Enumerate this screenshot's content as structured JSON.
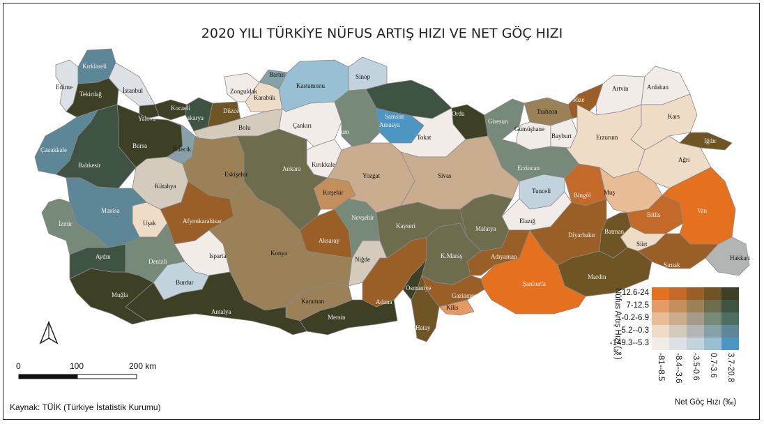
{
  "title": "2020 YILI TÜRKİYE NÜFUS ARTIŞ HIZI VE NET GÖÇ HIZI",
  "source": "Kaynak: TÜİK (Türkiye İstatistik Kurumu)",
  "scale_bar": {
    "tick_0": "0",
    "tick_1": "100",
    "tick_2": "200 km"
  },
  "north_arrow": "north-arrow-icon",
  "legend": {
    "y_title": "Nüfus Artış Hızı (‰)",
    "x_title": "Net Göç Hızı (‰)",
    "y_classes": [
      "12.6-24",
      "7-12.5",
      "-0.2-6.9",
      "-5.2--0.3",
      "-149.3--5.3"
    ],
    "x_classes": [
      "-81--8.5",
      "-8.4--3.6",
      "-3.5-0.6",
      "0.7-3.6",
      "3.7-20.8"
    ],
    "colors": [
      [
        "#e5711f",
        "#c36a2a",
        "#9a5f27",
        "#6f5524",
        "#3d4024"
      ],
      [
        "#e39a64",
        "#c38f5c",
        "#9b8157",
        "#6d6d4e",
        "#3f5342"
      ],
      [
        "#e8bc95",
        "#c9ad8e",
        "#a49c88",
        "#778978",
        "#4d6f63"
      ],
      [
        "#eedcc6",
        "#d4cbbd",
        "#b2b5b4",
        "#87a1a8",
        "#5d8796"
      ],
      [
        "#f2ece9",
        "#dde0e5",
        "#c2d3de",
        "#99bfd2",
        "#4d95c3"
      ]
    ]
  },
  "provinces": [
    {
      "name": "Edirne",
      "color": "#dde0e5"
    },
    {
      "name": "Kırklareli",
      "color": "#5d8796"
    },
    {
      "name": "Tekirdağ",
      "color": "#3d4024"
    },
    {
      "name": "İstanbul",
      "color": "#dde0e5"
    },
    {
      "name": "Kocaeli",
      "color": "#3d4024"
    },
    {
      "name": "Yalova",
      "color": "#3d4024"
    },
    {
      "name": "Sakarya",
      "color": "#3f5342"
    },
    {
      "name": "Düzce",
      "color": "#6f5524"
    },
    {
      "name": "Zonguldak",
      "color": "#f2ece9"
    },
    {
      "name": "Bartın",
      "color": "#87a1a8"
    },
    {
      "name": "Karabük",
      "color": "#eedcc6"
    },
    {
      "name": "Kastamonu",
      "color": "#99bfd2"
    },
    {
      "name": "Sinop",
      "color": "#c2d3de"
    },
    {
      "name": "Samsun",
      "color": "#3f5342"
    },
    {
      "name": "Ordu",
      "color": "#3d4024"
    },
    {
      "name": "Giresun",
      "color": "#778978"
    },
    {
      "name": "Trabzon",
      "color": "#9b8157"
    },
    {
      "name": "Rize",
      "color": "#9a5f27"
    },
    {
      "name": "Artvin",
      "color": "#f2ece9"
    },
    {
      "name": "Ardahan",
      "color": "#f2ece9"
    },
    {
      "name": "Gümüşhane",
      "color": "#f2ece9"
    },
    {
      "name": "Bayburt",
      "color": "#f2ece9"
    },
    {
      "name": "Erzurum",
      "color": "#eedcc6"
    },
    {
      "name": "Kars",
      "color": "#eedcc6"
    },
    {
      "name": "Iğdır",
      "color": "#6f5524"
    },
    {
      "name": "Ağrı",
      "color": "#eedcc6"
    },
    {
      "name": "Çanakkale",
      "color": "#5d8796"
    },
    {
      "name": "Balıkesir",
      "color": "#3f5342"
    },
    {
      "name": "Bursa",
      "color": "#3d4024"
    },
    {
      "name": "Bilecik",
      "color": "#87a1a8"
    },
    {
      "name": "Bolu",
      "color": "#d4cbbd"
    },
    {
      "name": "Çankırı",
      "color": "#f2ece9"
    },
    {
      "name": "Çorum",
      "color": "#778978"
    },
    {
      "name": "Amasya",
      "color": "#4d95c3"
    },
    {
      "name": "Tokat",
      "color": "#f2ece9"
    },
    {
      "name": "Erzincan",
      "color": "#778978"
    },
    {
      "name": "Tunceli",
      "color": "#c2d3de"
    },
    {
      "name": "Bingöl",
      "color": "#c36a2a"
    },
    {
      "name": "Muş",
      "color": "#e8bc95"
    },
    {
      "name": "Bitlis",
      "color": "#c36a2a"
    },
    {
      "name": "Van",
      "color": "#e5711f"
    },
    {
      "name": "Hakkari",
      "color": "#b2b5b4"
    },
    {
      "name": "Şırnak",
      "color": "#9a5f27"
    },
    {
      "name": "Siirt",
      "color": "#eedcc6"
    },
    {
      "name": "Batman",
      "color": "#6f5524"
    },
    {
      "name": "Mardin",
      "color": "#6f5524"
    },
    {
      "name": "Diyarbakır",
      "color": "#9a5f27"
    },
    {
      "name": "Şanlıurfa",
      "color": "#e5711f"
    },
    {
      "name": "Elazığ",
      "color": "#f2ece9"
    },
    {
      "name": "Malatya",
      "color": "#6d6d4e"
    },
    {
      "name": "Adıyaman",
      "color": "#9a5f27"
    },
    {
      "name": "K.Maraş",
      "color": "#6d6d4e"
    },
    {
      "name": "Gaziantep",
      "color": "#9a5f27"
    },
    {
      "name": "Kilis",
      "color": "#e39a64"
    },
    {
      "name": "Hatay",
      "color": "#6f5524"
    },
    {
      "name": "Osmaniye",
      "color": "#3d4024"
    },
    {
      "name": "Adana",
      "color": "#9a5f27"
    },
    {
      "name": "Mersin",
      "color": "#3d4024"
    },
    {
      "name": "Karaman",
      "color": "#9b8157"
    },
    {
      "name": "Niğde",
      "color": "#d4cbbd"
    },
    {
      "name": "Aksaray",
      "color": "#9a5f27"
    },
    {
      "name": "Nevşehir",
      "color": "#778978"
    },
    {
      "name": "Kırşehir",
      "color": "#c38f5c"
    },
    {
      "name": "Kırıkkale",
      "color": "#f2ece9"
    },
    {
      "name": "Yozgat",
      "color": "#c9ad8e"
    },
    {
      "name": "Sivas",
      "color": "#c9ad8e"
    },
    {
      "name": "Kayseri",
      "color": "#6d6d4e"
    },
    {
      "name": "Ankara",
      "color": "#6d6d4e"
    },
    {
      "name": "Eskişehir",
      "color": "#9b8157"
    },
    {
      "name": "Kütahya",
      "color": "#d4cbbd"
    },
    {
      "name": "Uşak",
      "color": "#eedcc6"
    },
    {
      "name": "Afyonkarahisar",
      "color": "#9a5f27"
    },
    {
      "name": "Konya",
      "color": "#9b8157"
    },
    {
      "name": "Isparta",
      "color": "#f2ece9"
    },
    {
      "name": "Burdur",
      "color": "#c2d3de"
    },
    {
      "name": "Antalya",
      "color": "#3d4024"
    },
    {
      "name": "Muğla",
      "color": "#3d4024"
    },
    {
      "name": "Denizli",
      "color": "#778978"
    },
    {
      "name": "Aydın",
      "color": "#3f5342"
    },
    {
      "name": "Manisa",
      "color": "#5d8796"
    },
    {
      "name": "İzmir",
      "color": "#778978"
    }
  ]
}
